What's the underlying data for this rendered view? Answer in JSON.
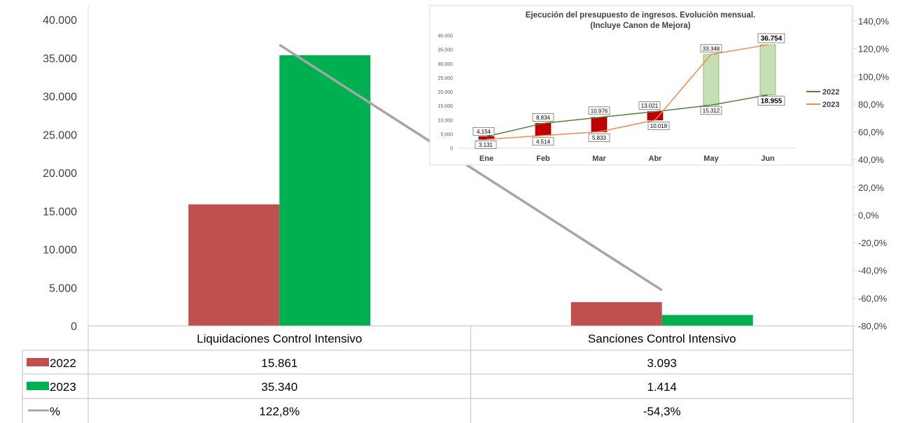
{
  "chart_data": [
    {
      "type": "bar",
      "categories": [
        "Liquidaciones Control Intensivo",
        "Sanciones Control Intensivo"
      ],
      "series": [
        {
          "name": "2022",
          "values": [
            15861,
            3093
          ],
          "labels": [
            "15.861",
            "3.093"
          ],
          "color": "#C0504D"
        },
        {
          "name": "2023",
          "values": [
            35340,
            1414
          ],
          "labels": [
            "35.340",
            "1.414"
          ],
          "color": "#00B050"
        },
        {
          "name": "%",
          "values": [
            122.8,
            -54.3
          ],
          "labels": [
            "122,8%",
            "-54,3%"
          ],
          "color": "#A6A6A6",
          "axis": "secondary",
          "kind": "line"
        }
      ],
      "ylim": [
        0,
        40000
      ],
      "y_ticks": [
        0,
        5000,
        10000,
        15000,
        20000,
        25000,
        30000,
        35000,
        40000
      ],
      "y_tick_labels": [
        "0",
        "5.000",
        "10.000",
        "15.000",
        "20.000",
        "25.000",
        "30.000",
        "35.000",
        "40.000"
      ],
      "y2lim": [
        -80,
        140
      ],
      "y2_ticks": [
        -80,
        -60,
        -40,
        -20,
        0,
        20,
        40,
        60,
        80,
        100,
        120,
        140
      ],
      "y2_tick_labels": [
        "-80,0%",
        "-60,0%",
        "-40,0%",
        "-20,0%",
        "0,0%",
        "20,0%",
        "40,0%",
        "60,0%",
        "80,0%",
        "100,0%",
        "120,0%",
        "140,0%"
      ],
      "data_table": true,
      "grid": false
    },
    {
      "type": "line",
      "title": "Ejecución del presupuesto de ingresos. Evolución mensual.",
      "subtitle": "(Incluye Canon de Mejora)",
      "categories": [
        "Ene",
        "Feb",
        "Mar",
        "Abr",
        "May",
        "Jun"
      ],
      "series": [
        {
          "name": "2022",
          "values": [
            4154,
            8834,
            10976,
            13021,
            15312,
            18955
          ],
          "labels": [
            "4.154",
            "8.834",
            "10.976",
            "13.021",
            "15.312",
            "18.955"
          ],
          "color": "#548235"
        },
        {
          "name": "2023",
          "values": [
            3131,
            4514,
            5833,
            10018,
            33348,
            36754
          ],
          "labels": [
            "3.131",
            "4.514",
            "5.833",
            "10.018",
            "33.348",
            "36.754"
          ],
          "color": "#F4894B"
        }
      ],
      "ylim": [
        0,
        40000
      ],
      "y_ticks": [
        0,
        5000,
        10000,
        15000,
        20000,
        25000,
        30000,
        35000,
        40000
      ],
      "y_tick_labels": [
        "0",
        "5.000",
        "10.000",
        "15.000",
        "20.000",
        "25.000",
        "30.000",
        "35.000",
        "40.000"
      ],
      "up_bar_color": "#C5E0B4",
      "down_bar_color": "#C00000",
      "legend": "right",
      "grid": false
    }
  ]
}
